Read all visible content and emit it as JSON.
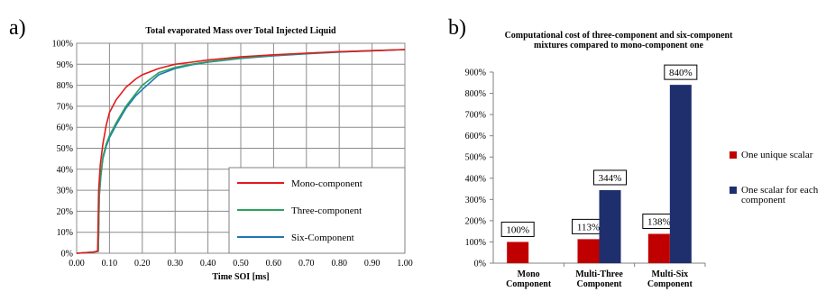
{
  "panels": {
    "left_label": "a)",
    "right_label": "b)"
  },
  "chart_data": [
    {
      "type": "line",
      "title": "Total evaporated Mass over Total Injected Liquid",
      "xlabel": "Time SOI  [ms]",
      "ylabel": "",
      "xlim": [
        0,
        1.0
      ],
      "ylim": [
        0,
        100
      ],
      "x_ticks": [
        "0.00",
        "0.10",
        "0.20",
        "0.30",
        "0.40",
        "0.50",
        "0.60",
        "0.70",
        "0.80",
        "0.90",
        "1.00"
      ],
      "y_ticks": [
        "0%",
        "10%",
        "20%",
        "30%",
        "40%",
        "50%",
        "60%",
        "70%",
        "80%",
        "90%",
        "100%"
      ],
      "grid": true,
      "legend_position": "bottom-right",
      "series": [
        {
          "name": "Mono-component",
          "color": "#e31a1c",
          "x": [
            0.0,
            0.05,
            0.064,
            0.067,
            0.072,
            0.08,
            0.09,
            0.1,
            0.12,
            0.15,
            0.18,
            0.2,
            0.25,
            0.3,
            0.35,
            0.4,
            0.5,
            0.6,
            0.7,
            0.8,
            0.9,
            1.0
          ],
          "y": [
            0,
            0.5,
            1,
            30,
            42,
            52,
            61,
            67,
            73,
            79,
            83,
            85,
            88,
            90,
            91,
            92,
            93.5,
            94.5,
            95.3,
            96,
            96.5,
            97
          ]
        },
        {
          "name": "Three-component",
          "color": "#2ca25f",
          "x": [
            0.0,
            0.05,
            0.066,
            0.069,
            0.074,
            0.08,
            0.09,
            0.1,
            0.12,
            0.15,
            0.18,
            0.2,
            0.25,
            0.3,
            0.35,
            0.4,
            0.5,
            0.6,
            0.7,
            0.8,
            0.9,
            1.0
          ],
          "y": [
            0,
            0.5,
            1,
            28,
            38,
            46,
            52,
            56,
            62,
            70,
            76,
            80,
            86,
            88.5,
            90,
            91.2,
            93,
            94.2,
            95.2,
            95.9,
            96.5,
            97
          ]
        },
        {
          "name": "Six-Component",
          "color": "#1f78b4",
          "x": [
            0.0,
            0.05,
            0.066,
            0.069,
            0.074,
            0.08,
            0.09,
            0.1,
            0.12,
            0.15,
            0.18,
            0.2,
            0.25,
            0.3,
            0.35,
            0.4,
            0.5,
            0.6,
            0.7,
            0.8,
            0.9,
            1.0
          ],
          "y": [
            0,
            0.5,
            1,
            27,
            37,
            45,
            51,
            55,
            61,
            69,
            75,
            78,
            85,
            88,
            89.7,
            91,
            92.8,
            94,
            95,
            95.8,
            96.4,
            97
          ]
        }
      ]
    },
    {
      "type": "bar",
      "title": "Computational cost of three-component and six-component mixtures compared to mono-component one",
      "title_lines": [
        "Computational cost of three-component and six-component",
        "mixtures compared to mono-component one"
      ],
      "categories": [
        "Mono Component",
        "Multi-Three Component",
        "Multi-Six Component"
      ],
      "category_lines": [
        [
          "Mono",
          "Component"
        ],
        [
          "Multi-Three",
          "Component"
        ],
        [
          "Multi-Six",
          "Component"
        ]
      ],
      "ylim": [
        0,
        900
      ],
      "y_ticks": [
        "0%",
        "100%",
        "200%",
        "300%",
        "400%",
        "500%",
        "600%",
        "700%",
        "800%",
        "900%"
      ],
      "grid": false,
      "legend_position": "right",
      "series": [
        {
          "name": "One unique scalar",
          "color": "#c00000",
          "values": [
            100,
            113,
            138
          ],
          "labels": [
            "100%",
            "113%",
            "138%"
          ]
        },
        {
          "name": "One scalar for each component",
          "name_lines": [
            "One scalar for each",
            "component"
          ],
          "color": "#1f2f6e",
          "values": [
            null,
            344,
            840
          ],
          "labels": [
            "",
            "344%",
            "840%"
          ]
        }
      ]
    }
  ]
}
